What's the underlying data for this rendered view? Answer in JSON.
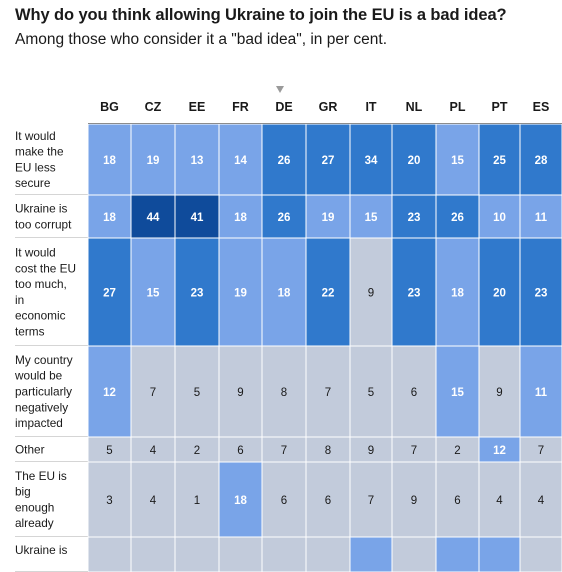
{
  "title": "Why do you think allowing Ukraine to join the EU is a bad idea?",
  "subtitle": "Among those who consider it a \"bad idea\", in per cent.",
  "chart_data": {
    "type": "heatmap",
    "columns": [
      "BG",
      "CZ",
      "EE",
      "FR",
      "DE",
      "GR",
      "IT",
      "NL",
      "PL",
      "PT",
      "ES"
    ],
    "sorted_column": "DE",
    "rows": [
      {
        "label": [
          "It would",
          "make the",
          "EU less",
          "secure"
        ],
        "values": [
          18,
          19,
          13,
          14,
          26,
          27,
          34,
          20,
          15,
          25,
          28
        ]
      },
      {
        "label": [
          "Ukraine is",
          "too corrupt"
        ],
        "values": [
          18,
          44,
          41,
          18,
          26,
          19,
          15,
          23,
          26,
          10,
          11
        ]
      },
      {
        "label": [
          "It would",
          "cost the EU",
          "too much,",
          "in",
          "economic",
          "terms"
        ],
        "values": [
          27,
          15,
          23,
          19,
          18,
          22,
          9,
          23,
          18,
          20,
          23
        ]
      },
      {
        "label": [
          "My country",
          "would be",
          "particularly",
          "negatively",
          "impacted"
        ],
        "values": [
          12,
          7,
          5,
          9,
          8,
          7,
          5,
          6,
          15,
          9,
          11
        ]
      },
      {
        "label": [
          "Other"
        ],
        "values": [
          5,
          4,
          2,
          6,
          7,
          8,
          9,
          7,
          2,
          12,
          7
        ]
      },
      {
        "label": [
          "The EU is",
          "big",
          "enough",
          "already"
        ],
        "values": [
          3,
          4,
          1,
          18,
          6,
          6,
          7,
          9,
          6,
          4,
          4
        ]
      },
      {
        "label": [
          "Ukraine is"
        ],
        "values": [
          null,
          null,
          null,
          null,
          null,
          null,
          null,
          null,
          null,
          null,
          null
        ]
      }
    ],
    "partial_row_fill": [
      "low",
      "low",
      "low",
      "low",
      "low",
      "low",
      "mid",
      "low",
      "mid",
      "mid",
      "low"
    ],
    "colors": {
      "low": "#c2cbdb",
      "mid": "#79a4e8",
      "high": "#3079cc",
      "top": "#0f4b9b",
      "text_dark": "#1a1a1a",
      "text_light": "#ffffff"
    }
  }
}
